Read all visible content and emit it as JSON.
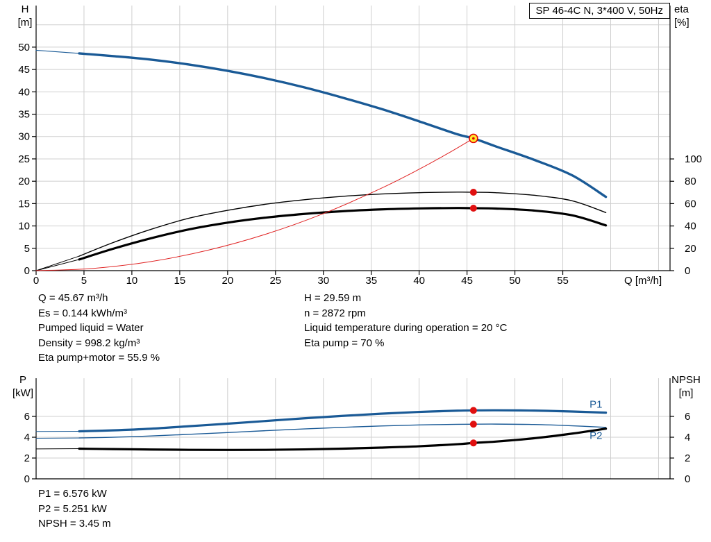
{
  "title_box": "SP 46-4C N, 3*400 V, 50Hz",
  "axis_titles": {
    "top_left_1": "H",
    "top_left_2": "[m]",
    "top_right_1": "eta",
    "top_right_2": "[%]",
    "x_label": "Q [m³/h]",
    "bottom_left_1": "P",
    "bottom_left_2": "[kW]",
    "bottom_right_1": "NPSH",
    "bottom_right_2": "[m]"
  },
  "info_top": {
    "left": [
      "Q = 45.67 m³/h",
      "Es = 0.144 kWh/m³",
      "Pumped liquid = Water",
      "Density = 998.2 kg/m³",
      "Eta pump+motor = 55.9 %"
    ],
    "right": [
      "H = 29.59 m",
      "n = 2872 rpm",
      "Liquid temperature during operation = 20 °C",
      "Eta pump = 70 %"
    ]
  },
  "info_bottom": [
    "P1 = 6.576 kW",
    "P2 = 5.251 kW",
    "NPSH = 3.45 m"
  ],
  "colors": {
    "curve_blue": "#1a5a96",
    "curve_red": "#e02222",
    "curve_black": "#000000",
    "grid": "#cfcfcf",
    "axis": "#000000",
    "duty_fill": "#ffe82d",
    "duty_ring": "#e00000",
    "dot_red": "#e01010"
  },
  "chart_data": [
    {
      "name": "qh-eta-chart",
      "type": "line",
      "title": "SP 46-4C N, 3*400 V, 50Hz",
      "x": {
        "min": 0,
        "max": 66.2,
        "px0": 52,
        "px1": 965,
        "ticks": [
          0,
          5,
          10,
          15,
          20,
          25,
          30,
          35,
          40,
          45,
          50,
          55
        ],
        "grid": [
          5,
          10,
          15,
          20,
          25,
          30,
          35,
          40,
          45,
          50,
          55,
          60,
          65
        ]
      },
      "y_axes": {
        "left": {
          "label": "H [m]",
          "min": 0,
          "max": 59.3,
          "px0": 390,
          "px1": 8,
          "ticks": [
            0,
            5,
            10,
            15,
            20,
            25,
            30,
            35,
            40,
            45,
            50
          ],
          "grid": [
            5,
            10,
            15,
            20,
            25,
            30,
            35,
            40,
            45,
            50,
            55
          ]
        },
        "right": {
          "label": "eta [%]",
          "min": 0,
          "max": 237.3,
          "px0": 390,
          "px1": 8,
          "ticks": [
            0,
            20,
            40,
            60,
            80,
            100
          ]
        }
      },
      "series": [
        {
          "name": "qh-curve-lead",
          "axis": "left",
          "color_key": "curve_blue",
          "width": 1.2,
          "points": [
            [
              0,
              49.3
            ],
            [
              4.5,
              48.6
            ]
          ]
        },
        {
          "name": "qh-curve",
          "axis": "left",
          "color_key": "curve_blue",
          "width": 3.4,
          "points": [
            [
              4.5,
              48.6
            ],
            [
              8,
              48.0
            ],
            [
              12,
              47.2
            ],
            [
              16,
              46.1
            ],
            [
              20,
              44.7
            ],
            [
              24,
              43.0
            ],
            [
              28,
              41.0
            ],
            [
              32,
              38.7
            ],
            [
              36,
              36.2
            ],
            [
              40,
              33.4
            ],
            [
              44,
              30.5
            ],
            [
              45.67,
              29.59
            ],
            [
              48,
              27.8
            ],
            [
              52,
              24.8
            ],
            [
              56,
              21.3
            ],
            [
              59.5,
              16.5
            ]
          ]
        },
        {
          "name": "eta-pump-curve-lead",
          "axis": "right",
          "color_key": "curve_black",
          "width": 1,
          "points": [
            [
              0,
              0
            ],
            [
              4.5,
              13
            ]
          ]
        },
        {
          "name": "eta-pump-curve",
          "axis": "right",
          "color_key": "curve_black",
          "width": 1.4,
          "points": [
            [
              4.5,
              13
            ],
            [
              8,
              25
            ],
            [
              12,
              37
            ],
            [
              16,
              47
            ],
            [
              20,
              54
            ],
            [
              24,
              59.5
            ],
            [
              28,
              63.5
            ],
            [
              32,
              66.5
            ],
            [
              36,
              68.6
            ],
            [
              40,
              69.8
            ],
            [
              44,
              70.3
            ],
            [
              45.67,
              70.2
            ],
            [
              48,
              69.8
            ],
            [
              52,
              67.5
            ],
            [
              56,
              62.5
            ],
            [
              59.5,
              52
            ]
          ]
        },
        {
          "name": "eta-pump-motor-curve-lead",
          "axis": "right",
          "color_key": "curve_black",
          "width": 1,
          "points": [
            [
              0,
              0
            ],
            [
              4.5,
              10
            ]
          ]
        },
        {
          "name": "eta-pump-motor-curve",
          "axis": "right",
          "color_key": "curve_black",
          "width": 3.2,
          "points": [
            [
              4.5,
              10
            ],
            [
              8,
              19.5
            ],
            [
              12,
              29
            ],
            [
              16,
              37
            ],
            [
              20,
              43
            ],
            [
              24,
              47.5
            ],
            [
              28,
              50.8
            ],
            [
              32,
              53.2
            ],
            [
              36,
              54.8
            ],
            [
              40,
              55.7
            ],
            [
              44,
              56.1
            ],
            [
              45.67,
              55.9
            ],
            [
              48,
              55.6
            ],
            [
              52,
              53.8
            ],
            [
              56,
              49.5
            ],
            [
              59.5,
              40.5
            ]
          ]
        },
        {
          "name": "system-curve",
          "axis": "left",
          "color_key": "curve_red",
          "width": 1,
          "points": [
            [
              0,
              0
            ],
            [
              6,
              0.51
            ],
            [
              12,
              2.04
            ],
            [
              18,
              4.6
            ],
            [
              24,
              8.17
            ],
            [
              30,
              12.76
            ],
            [
              36,
              18.38
            ],
            [
              40,
              22.69
            ],
            [
              43,
              26.22
            ],
            [
              45.67,
              29.59
            ]
          ]
        }
      ],
      "markers": [
        {
          "name": "duty-point",
          "x": 45.67,
          "y": 29.59,
          "axis": "left",
          "type": "duty"
        },
        {
          "name": "eta-pump-point",
          "x": 45.67,
          "y": 70.2,
          "axis": "right",
          "type": "dot"
        },
        {
          "name": "eta-pump-motor-point",
          "x": 45.67,
          "y": 55.9,
          "axis": "right",
          "type": "dot"
        }
      ],
      "annotations": []
    },
    {
      "name": "power-npsh-chart",
      "type": "line",
      "x": {
        "min": 0,
        "max": 66.2,
        "px0": 52,
        "px1": 965,
        "ticks": [],
        "grid": [
          5,
          10,
          15,
          20,
          25,
          30,
          35,
          40,
          45,
          50,
          55,
          60,
          65
        ]
      },
      "y_axes": {
        "left": {
          "label": "P [kW]",
          "min": 0,
          "max": 9.67,
          "px0": 690,
          "px1": 545,
          "ticks": [
            0,
            2,
            4,
            6
          ],
          "grid": [
            2,
            4,
            6
          ]
        },
        "right": {
          "label": "NPSH [m]",
          "min": 0,
          "max": 9.67,
          "px0": 690,
          "px1": 545,
          "ticks": [
            0,
            2,
            4,
            6
          ]
        }
      },
      "series": [
        {
          "name": "p1-curve-lead",
          "axis": "left",
          "color_key": "curve_blue",
          "width": 1,
          "points": [
            [
              0,
              4.55
            ],
            [
              4.5,
              4.57
            ]
          ]
        },
        {
          "name": "p1-curve",
          "axis": "left",
          "color_key": "curve_blue",
          "width": 3.2,
          "points": [
            [
              4.5,
              4.57
            ],
            [
              8,
              4.66
            ],
            [
              12,
              4.82
            ],
            [
              16,
              5.06
            ],
            [
              20,
              5.3
            ],
            [
              24,
              5.56
            ],
            [
              28,
              5.82
            ],
            [
              32,
              6.05
            ],
            [
              36,
              6.26
            ],
            [
              40,
              6.43
            ],
            [
              44,
              6.55
            ],
            [
              45.67,
              6.576
            ],
            [
              48,
              6.59
            ],
            [
              52,
              6.56
            ],
            [
              56,
              6.47
            ],
            [
              59.5,
              6.36
            ]
          ]
        },
        {
          "name": "p2-curve-lead",
          "axis": "left",
          "color_key": "curve_blue",
          "width": 1,
          "points": [
            [
              0,
              3.9
            ],
            [
              4.5,
              3.93
            ]
          ]
        },
        {
          "name": "p2-curve",
          "axis": "left",
          "color_key": "curve_blue",
          "width": 1.4,
          "points": [
            [
              4.5,
              3.93
            ],
            [
              8,
              4.0
            ],
            [
              12,
              4.12
            ],
            [
              16,
              4.28
            ],
            [
              20,
              4.45
            ],
            [
              24,
              4.63
            ],
            [
              28,
              4.8
            ],
            [
              32,
              4.95
            ],
            [
              36,
              5.08
            ],
            [
              40,
              5.18
            ],
            [
              44,
              5.24
            ],
            [
              45.67,
              5.251
            ],
            [
              48,
              5.26
            ],
            [
              52,
              5.22
            ],
            [
              56,
              5.1
            ],
            [
              59.5,
              4.95
            ]
          ]
        },
        {
          "name": "npsh-curve-lead",
          "axis": "right",
          "color_key": "curve_black",
          "width": 1,
          "points": [
            [
              0,
              2.88
            ],
            [
              4.5,
              2.9
            ]
          ]
        },
        {
          "name": "npsh-curve",
          "axis": "right",
          "color_key": "curve_black",
          "width": 3.2,
          "points": [
            [
              4.5,
              2.9
            ],
            [
              8,
              2.86
            ],
            [
              12,
              2.82
            ],
            [
              16,
              2.79
            ],
            [
              20,
              2.78
            ],
            [
              24,
              2.79
            ],
            [
              28,
              2.83
            ],
            [
              32,
              2.9
            ],
            [
              36,
              3.0
            ],
            [
              40,
              3.13
            ],
            [
              44,
              3.33
            ],
            [
              45.67,
              3.45
            ],
            [
              48,
              3.58
            ],
            [
              52,
              3.9
            ],
            [
              56,
              4.35
            ],
            [
              59.5,
              4.82
            ]
          ]
        }
      ],
      "markers": [
        {
          "name": "p1-point",
          "x": 45.67,
          "y": 6.576,
          "axis": "left",
          "type": "dot"
        },
        {
          "name": "p2-point",
          "x": 45.67,
          "y": 5.251,
          "axis": "left",
          "type": "dot"
        },
        {
          "name": "npsh-point",
          "x": 45.67,
          "y": 3.45,
          "axis": "right",
          "type": "dot"
        }
      ],
      "annotations": [
        {
          "name": "p1-curve-label",
          "text": "P1",
          "x": 57.8,
          "y": 6.85,
          "axis": "left",
          "color_key": "curve_blue"
        },
        {
          "name": "p2-curve-label",
          "text": "P2",
          "x": 57.8,
          "y": 3.85,
          "axis": "left",
          "color_key": "curve_blue"
        }
      ]
    }
  ]
}
